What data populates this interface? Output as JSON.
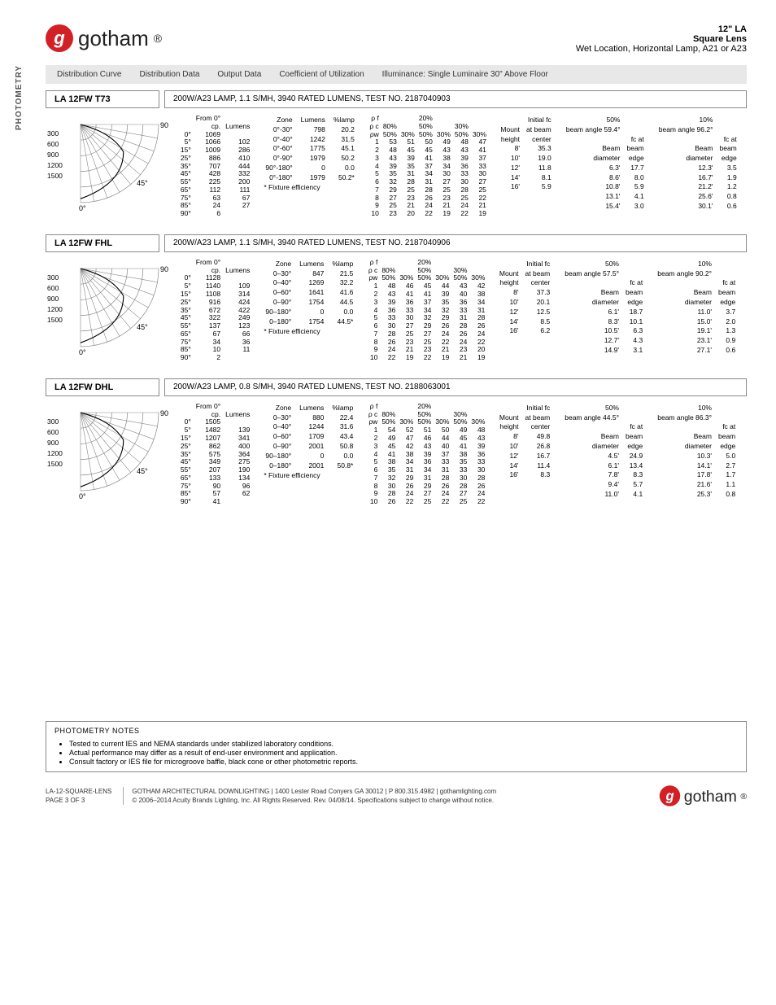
{
  "brand": "gotham",
  "header": {
    "line1": "12\" LA",
    "line2": "Square Lens",
    "line3": "Wet Location, Horizontal Lamp, A21 or A23"
  },
  "sideLabel": "PHOTOMETRY",
  "tabs": [
    "Distribution Curve",
    "Distribution Data",
    "Output Data",
    "Coefficient of Utilization",
    "Illuminance: Single Luminaire 30\" Above Floor"
  ],
  "polar": {
    "scale_levels": [
      "300",
      "600",
      "900",
      "1200",
      "1500"
    ],
    "angles": [
      "0°",
      "45°",
      "90°"
    ],
    "grid_color": "#777",
    "ray_color": "#777"
  },
  "models": [
    {
      "model": "LA 12FW T73",
      "lamp": "200W/A23 LAMP, 1.1 S/MH, 3940 RATED LUMENS, TEST NO. 2187040903",
      "cp": {
        "from": "From 0°",
        "hdr": [
          "cp.",
          "Lumens"
        ],
        "rows": [
          [
            "0°",
            "1069",
            ""
          ],
          [
            "5°",
            "1066",
            "102"
          ],
          [
            "15°",
            "1009",
            "286"
          ],
          [
            "25°",
            "886",
            "410"
          ],
          [
            "35°",
            "707",
            "444"
          ],
          [
            "45°",
            "428",
            "332"
          ],
          [
            "55°",
            "225",
            "200"
          ],
          [
            "65°",
            "112",
            "111"
          ],
          [
            "75°",
            "63",
            "67"
          ],
          [
            "85°",
            "24",
            "27"
          ],
          [
            "90°",
            "6",
            ""
          ]
        ]
      },
      "zone": {
        "hdr": [
          "Zone",
          "Lumens",
          "%lamp"
        ],
        "rows": [
          [
            "0°-30°",
            "798",
            "20.2"
          ],
          [
            "0°-40°",
            "1242",
            "31.5"
          ],
          [
            "0°-60°",
            "1775",
            "45.1"
          ],
          [
            "0°-90°",
            "1979",
            "50.2"
          ],
          [
            "90°-180°",
            "0",
            "0.0"
          ],
          [
            "0°-180°",
            "1979",
            "50.2*"
          ]
        ],
        "eff": "*  Fixture efficiency"
      },
      "coef": {
        "top_left": "ρ f\nρ c\nρw",
        "pcts": [
          [
            "80%",
            ""
          ],
          [
            "50%",
            "30%"
          ],
          [
            "20%",
            "50%"
          ],
          [
            "50%",
            "30%"
          ],
          [
            "30%",
            "50%",
            "30%"
          ]
        ],
        "hdr_80": [
          "80%",
          "",
          "20%",
          "",
          "30%"
        ],
        "hdr_50_30": [
          "50%",
          "30%",
          "50%",
          "30%",
          "50%",
          "30%"
        ],
        "rows": [
          [
            "1",
            "53",
            "51",
            "50",
            "49",
            "48",
            "47"
          ],
          [
            "2",
            "48",
            "45",
            "45",
            "43",
            "43",
            "41"
          ],
          [
            "3",
            "43",
            "39",
            "41",
            "38",
            "39",
            "37"
          ],
          [
            "4",
            "39",
            "35",
            "37",
            "34",
            "36",
            "33"
          ],
          [
            "5",
            "35",
            "31",
            "34",
            "30",
            "33",
            "30"
          ],
          [
            "6",
            "32",
            "28",
            "31",
            "27",
            "30",
            "27"
          ],
          [
            "7",
            "29",
            "25",
            "28",
            "25",
            "28",
            "25"
          ],
          [
            "8",
            "27",
            "23",
            "26",
            "23",
            "25",
            "22"
          ],
          [
            "9",
            "25",
            "21",
            "24",
            "21",
            "24",
            "21"
          ],
          [
            "10",
            "23",
            "20",
            "22",
            "19",
            "22",
            "19"
          ]
        ]
      },
      "initial": {
        "hdr": [
          "Mount",
          "Initial fc"
        ],
        "sub": [
          "height",
          "at beam",
          "center"
        ],
        "rows": [
          [
            "8'",
            "35.3"
          ],
          [
            "10'",
            "19.0"
          ],
          [
            "12'",
            "11.8"
          ],
          [
            "14'",
            "8.1"
          ],
          [
            "16'",
            "5.9"
          ]
        ]
      },
      "beam50": {
        "pct": "50%",
        "angle": "beam angle 59.4°",
        "hdr": [
          "Beam",
          "fc at",
          "beam"
        ],
        "sub": [
          "diameter",
          "edge"
        ],
        "rows": [
          [
            "6.3'",
            "17.7"
          ],
          [
            "8.6'",
            "8.0"
          ],
          [
            "10.8'",
            "5.9"
          ],
          [
            "13.1'",
            "4.1"
          ],
          [
            "15.4'",
            "3.0"
          ]
        ]
      },
      "beam10": {
        "pct": "10%",
        "angle": "beam angle 96.2°",
        "rows": [
          [
            "12.3'",
            "3.5"
          ],
          [
            "16.7'",
            "1.9"
          ],
          [
            "21.2'",
            "1.2"
          ],
          [
            "25.6'",
            "0.8"
          ],
          [
            "30.1'",
            "0.6"
          ]
        ]
      }
    },
    {
      "model": "LA 12FW FHL",
      "lamp": "200W/A23 LAMP, 1.1 S/MH, 3940 RATED LUMENS, TEST NO. 2187040906",
      "cp": {
        "from": "From 0°",
        "hdr": [
          "cp.",
          "Lumens"
        ],
        "rows": [
          [
            "0°",
            "1128",
            ""
          ],
          [
            "5°",
            "1140",
            "109"
          ],
          [
            "15°",
            "1108",
            "314"
          ],
          [
            "25°",
            "916",
            "424"
          ],
          [
            "35°",
            "672",
            "422"
          ],
          [
            "45°",
            "322",
            "249"
          ],
          [
            "55°",
            "137",
            "123"
          ],
          [
            "65°",
            "67",
            "66"
          ],
          [
            "75°",
            "34",
            "36"
          ],
          [
            "85°",
            "10",
            "11"
          ],
          [
            "90°",
            "2",
            ""
          ]
        ]
      },
      "zone": {
        "hdr": [
          "Zone",
          "Lumens",
          "%lamp"
        ],
        "rows": [
          [
            "0–30°",
            "847",
            "21.5"
          ],
          [
            "0–40°",
            "1269",
            "32.2"
          ],
          [
            "0–60°",
            "1641",
            "41.6"
          ],
          [
            "0–90°",
            "1754",
            "44.5"
          ],
          [
            "90–180°",
            "0",
            "0.0"
          ],
          [
            "0–180°",
            "1754",
            "44.5*"
          ]
        ],
        "eff": "*  Fixture efficiency"
      },
      "coef": {
        "rows": [
          [
            "1",
            "48",
            "46",
            "45",
            "44",
            "43",
            "42"
          ],
          [
            "2",
            "43",
            "41",
            "41",
            "39",
            "40",
            "38"
          ],
          [
            "3",
            "39",
            "36",
            "37",
            "35",
            "36",
            "34"
          ],
          [
            "4",
            "36",
            "33",
            "34",
            "32",
            "33",
            "31"
          ],
          [
            "5",
            "33",
            "30",
            "32",
            "29",
            "31",
            "28"
          ],
          [
            "6",
            "30",
            "27",
            "29",
            "26",
            "28",
            "26"
          ],
          [
            "7",
            "28",
            "25",
            "27",
            "24",
            "26",
            "24"
          ],
          [
            "8",
            "26",
            "23",
            "25",
            "22",
            "24",
            "22"
          ],
          [
            "9",
            "24",
            "21",
            "23",
            "21",
            "23",
            "20"
          ],
          [
            "10",
            "22",
            "19",
            "22",
            "19",
            "21",
            "19"
          ]
        ]
      },
      "initial": {
        "rows": [
          [
            "8'",
            "37.3"
          ],
          [
            "10'",
            "20.1"
          ],
          [
            "12'",
            "12.5"
          ],
          [
            "14'",
            "8.5"
          ],
          [
            "16'",
            "6.2"
          ]
        ]
      },
      "beam50": {
        "pct": "50%",
        "angle": "beam angle 57.5°",
        "rows": [
          [
            "6.1'",
            "18.7"
          ],
          [
            "8.3'",
            "10.1"
          ],
          [
            "10.5'",
            "6.3"
          ],
          [
            "12.7'",
            "4.3"
          ],
          [
            "14.9'",
            "3.1"
          ]
        ]
      },
      "beam10": {
        "pct": "10%",
        "angle": "beam angle 90.2°",
        "rows": [
          [
            "11.0'",
            "3.7"
          ],
          [
            "15.0'",
            "2.0"
          ],
          [
            "19.1'",
            "1.3"
          ],
          [
            "23.1'",
            "0.9"
          ],
          [
            "27.1'",
            "0.6"
          ]
        ]
      }
    },
    {
      "model": "LA 12FW DHL",
      "lamp": "200W/A23 LAMP, 0.8 S/MH, 3940 RATED LUMENS, TEST NO. 2188063001",
      "cp": {
        "from": "From 0°",
        "hdr": [
          "cp.",
          "Lumens"
        ],
        "rows": [
          [
            "0°",
            "1505",
            ""
          ],
          [
            "5°",
            "1482",
            "139"
          ],
          [
            "15°",
            "1207",
            "341"
          ],
          [
            "25°",
            "862",
            "400"
          ],
          [
            "35°",
            "575",
            "364"
          ],
          [
            "45°",
            "349",
            "275"
          ],
          [
            "55°",
            "207",
            "190"
          ],
          [
            "65°",
            "133",
            "134"
          ],
          [
            "75°",
            "90",
            "96"
          ],
          [
            "85°",
            "57",
            "62"
          ],
          [
            "90°",
            "41",
            ""
          ]
        ]
      },
      "zone": {
        "hdr": [
          "Zone",
          "Lumens",
          "%lamp"
        ],
        "rows": [
          [
            "0–30°",
            "880",
            "22.4"
          ],
          [
            "0–40°",
            "1244",
            "31.6"
          ],
          [
            "0–60°",
            "1709",
            "43.4"
          ],
          [
            "0–90°",
            "2001",
            "50.8"
          ],
          [
            "90–180°",
            "0",
            "0.0"
          ],
          [
            "0–180°",
            "2001",
            "50.8*"
          ]
        ],
        "eff": "*  Fixture efficiency"
      },
      "coef": {
        "rows": [
          [
            "1",
            "54",
            "52",
            "51",
            "50",
            "49",
            "48"
          ],
          [
            "2",
            "49",
            "47",
            "46",
            "44",
            "45",
            "43"
          ],
          [
            "3",
            "45",
            "42",
            "43",
            "40",
            "41",
            "39"
          ],
          [
            "4",
            "41",
            "38",
            "39",
            "37",
            "38",
            "36"
          ],
          [
            "5",
            "38",
            "34",
            "36",
            "33",
            "35",
            "33"
          ],
          [
            "6",
            "35",
            "31",
            "34",
            "31",
            "33",
            "30"
          ],
          [
            "7",
            "32",
            "29",
            "31",
            "28",
            "30",
            "28"
          ],
          [
            "8",
            "30",
            "26",
            "29",
            "26",
            "28",
            "26"
          ],
          [
            "9",
            "28",
            "24",
            "27",
            "24",
            "27",
            "24"
          ],
          [
            "10",
            "26",
            "22",
            "25",
            "22",
            "25",
            "22"
          ]
        ]
      },
      "initial": {
        "rows": [
          [
            "8'",
            "49.8"
          ],
          [
            "10'",
            "26.8"
          ],
          [
            "12'",
            "16.7"
          ],
          [
            "14'",
            "11.4"
          ],
          [
            "16'",
            "8.3"
          ]
        ]
      },
      "beam50": {
        "pct": "50%",
        "angle": "beam angle 44.5°",
        "rows": [
          [
            "4.5'",
            "24.9"
          ],
          [
            "6.1'",
            "13.4"
          ],
          [
            "7.8'",
            "8.3"
          ],
          [
            "9.4'",
            "5.7"
          ],
          [
            "11.0'",
            "4.1"
          ]
        ]
      },
      "beam10": {
        "pct": "10%",
        "angle": "beam angle 86.3°",
        "rows": [
          [
            "10.3'",
            "5.0"
          ],
          [
            "14.1'",
            "2.7"
          ],
          [
            "17.8'",
            "1.7"
          ],
          [
            "21.6'",
            "1.1"
          ],
          [
            "25.3'",
            "0.8"
          ]
        ]
      }
    }
  ],
  "notes": {
    "title": "PHOTOMETRY NOTES",
    "items": [
      "Tested to current IES and NEMA standards under stabilized laboratory conditions.",
      "Actual performance may differ as a result of end-user environment and application.",
      "Consult factory or IES file for microgroove baffle, black cone or other photometric reports."
    ]
  },
  "footer": {
    "code": "LA-12-SQUARE-LENS",
    "page": "PAGE 3 OF 3",
    "addr": "GOTHAM ARCHITECTURAL DOWNLIGHTING  |  1400 Lester Road Conyers GA 30012  |  P 800.315.4982  |  gothamlighting.com",
    "copy": "© 2006–2014 Acuity Brands Lighting, Inc. All Rights Reserved. Rev. 04/08/14. Specifications subject to change without notice."
  },
  "colors": {
    "brand_red": "#d32027",
    "grid": "#e0e0e0",
    "border": "#888"
  }
}
